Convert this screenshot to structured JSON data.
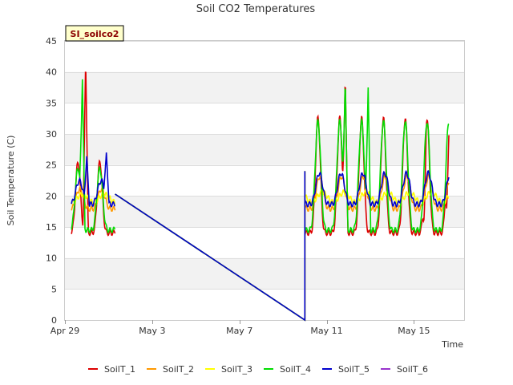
{
  "chart_data": {
    "type": "line",
    "title": "Soil CO2 Temperatures",
    "site_label": "SI_soilco2",
    "xlabel": "Time",
    "ylabel": "Soil Temperature (C)",
    "ylim": [
      0,
      45
    ],
    "yticks": [
      0,
      5,
      10,
      15,
      20,
      25,
      30,
      35,
      40,
      45
    ],
    "xlim": [
      0,
      18.3
    ],
    "xticks": [
      {
        "value": 0,
        "label": "Apr 29"
      },
      {
        "value": 4,
        "label": "May 3"
      },
      {
        "value": 8,
        "label": "May 7"
      },
      {
        "value": 12,
        "label": "May 11"
      },
      {
        "value": 16,
        "label": "May 15"
      }
    ],
    "grid": true,
    "legend_position": "bottom",
    "series": [
      {
        "name": "SoilT_1",
        "color": "#dd0000",
        "mean": 19.3,
        "amp1": 11.5,
        "amp2": 18.5,
        "sharp": 4,
        "phase": 0.6,
        "segments": [
          [
            0.3,
            2.3
          ],
          [
            11.0,
            17.6
          ]
        ],
        "extremes": [
          [
            0.95,
            42.3
          ],
          [
            12.85,
            39.5
          ],
          [
            16.45,
            15.6
          ],
          [
            17.5,
            18.0
          ]
        ]
      },
      {
        "name": "SoilT_2",
        "color": "#ff9900",
        "mean": 19.4,
        "amp1": 3.2,
        "amp2": 5.2,
        "sharp": 2,
        "phase": 0.68,
        "segments": [
          [
            0.3,
            2.3
          ],
          [
            11.0,
            17.6
          ]
        ],
        "extremes": []
      },
      {
        "name": "SoilT_3",
        "color": "#ffff00",
        "mean": 19.5,
        "amp1": 1.3,
        "amp2": 1.6,
        "sharp": 1,
        "phase": 0.8,
        "segments": [
          [
            0.3,
            2.3
          ],
          [
            11.0,
            17.6
          ]
        ],
        "extremes": []
      },
      {
        "name": "SoilT_4",
        "color": "#00dd00",
        "mean": 19.3,
        "amp1": 10.0,
        "amp2": 17.5,
        "sharp": 3,
        "phase": 0.6,
        "segments": [
          [
            0.3,
            2.3
          ],
          [
            11.0,
            17.6
          ]
        ],
        "extremes": [
          [
            0.8,
            38.8
          ],
          [
            12.85,
            39.0
          ],
          [
            13.9,
            37.5
          ]
        ]
      },
      {
        "name": "SoilT_5",
        "color": "#0000cc",
        "mean": 20.2,
        "amp1": 3.8,
        "amp2": 5.0,
        "sharp": 2,
        "phase": 0.66,
        "segments": [
          [
            0.3,
            2.3
          ],
          [
            11.0,
            17.6
          ]
        ],
        "extremes": [
          [
            1.0,
            26.4
          ],
          [
            1.9,
            27.0
          ]
        ]
      },
      {
        "name": "SoilT_6",
        "color": "#9933cc",
        "mean": 20.2,
        "amp1": 3.8,
        "amp2": 5.0,
        "sharp": 2,
        "phase": 0.66,
        "segments": [],
        "extremes": []
      }
    ],
    "gap_line": {
      "start_x": 2.3,
      "start_y": 20.3,
      "end_x": 11.0,
      "end_y": 0,
      "jump_to": 24.0
    }
  }
}
